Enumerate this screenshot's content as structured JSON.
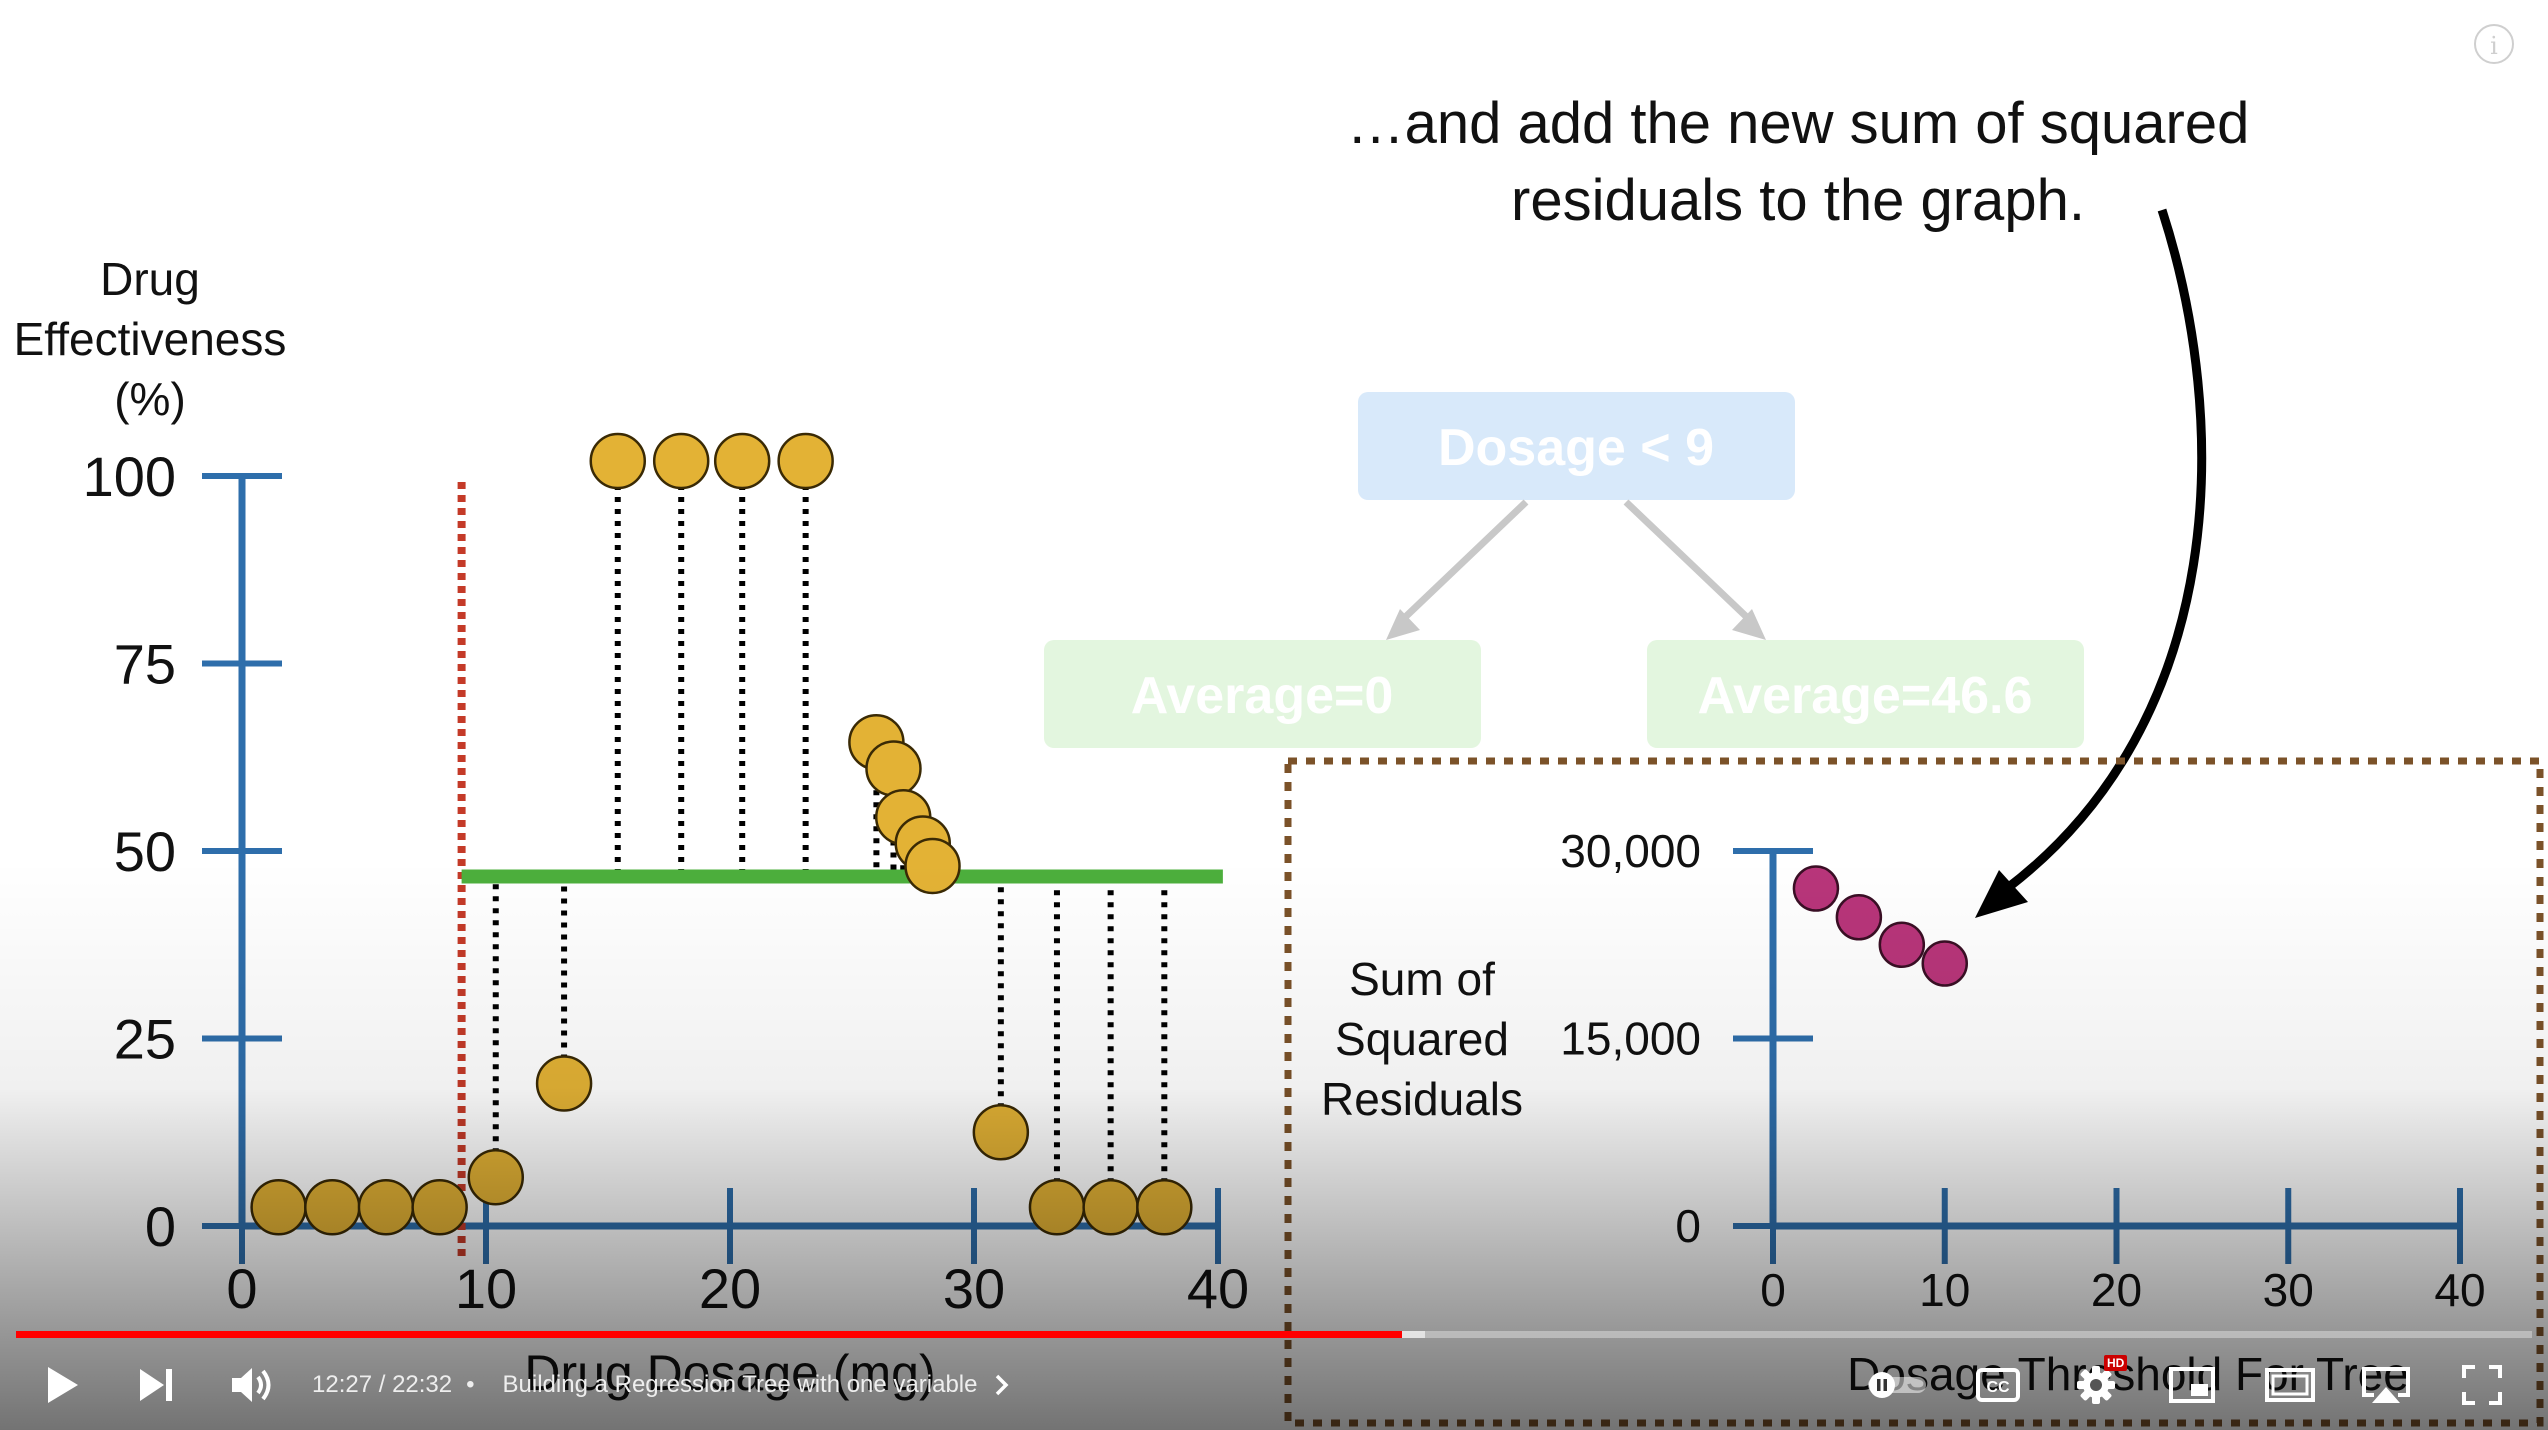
{
  "annotation": {
    "line1": "…and add the new sum of squared",
    "line2": "residuals to the graph."
  },
  "tree": {
    "root": "Dosage < 9",
    "left_leaf": "Average=0",
    "right_leaf": "Average=46.6"
  },
  "chart_data": [
    {
      "type": "scatter",
      "ylabel": [
        "Drug",
        "Effectiveness",
        "(%)"
      ],
      "xlabel": "Drug Dosage (mg)",
      "xlim": [
        0,
        40
      ],
      "ylim": [
        0,
        100
      ],
      "xticks": [
        "0",
        "10",
        "20",
        "30",
        "40"
      ],
      "yticks": [
        "0",
        "25",
        "50",
        "75",
        "100"
      ],
      "split_threshold": 9,
      "right_average": 46.6,
      "points": [
        {
          "x": 1.5,
          "y": 2.5
        },
        {
          "x": 3.7,
          "y": 2.5
        },
        {
          "x": 5.9,
          "y": 2.5
        },
        {
          "x": 8.1,
          "y": 2.5
        },
        {
          "x": 10.4,
          "y": 6.5
        },
        {
          "x": 13.2,
          "y": 19
        },
        {
          "x": 15.4,
          "y": 102
        },
        {
          "x": 18,
          "y": 102
        },
        {
          "x": 20.5,
          "y": 102
        },
        {
          "x": 23.1,
          "y": 102
        },
        {
          "x": 26,
          "y": 64.5
        },
        {
          "x": 26.7,
          "y": 61
        },
        {
          "x": 27.1,
          "y": 54.5
        },
        {
          "x": 27.9,
          "y": 51
        },
        {
          "x": 28.3,
          "y": 48
        },
        {
          "x": 31.1,
          "y": 12.5
        },
        {
          "x": 33.4,
          "y": 2.5
        },
        {
          "x": 35.6,
          "y": 2.5
        },
        {
          "x": 37.8,
          "y": 2.5
        }
      ],
      "dotted_residual_count": 13,
      "colors": {
        "axis": "#2e6eab",
        "points": "#e3b235",
        "split": "#c43a28",
        "average": "#4caf3c"
      }
    },
    {
      "type": "scatter",
      "ylabel": [
        "Sum of",
        "Squared",
        "Residuals"
      ],
      "xlabel": "Dosage Threshold For Tree",
      "xlim": [
        0,
        40
      ],
      "ylim": [
        0,
        30000
      ],
      "xticks": [
        "0",
        "10",
        "20",
        "30",
        "40"
      ],
      "yticks": [
        "0",
        "15,000",
        "30,000"
      ],
      "points": [
        {
          "x": 2.5,
          "y": 27000
        },
        {
          "x": 5,
          "y": 24700
        },
        {
          "x": 7.5,
          "y": 22500
        },
        {
          "x": 10,
          "y": 21000
        }
      ],
      "colors": {
        "axis": "#2e6eab",
        "points": "#b8357a",
        "frame": "#7b5229"
      }
    }
  ],
  "player": {
    "time": "12:27 / 22:32",
    "separator": "•",
    "chapter": "Building a Regression Tree with one variable",
    "progress_played": 0.551,
    "progress_buffered": 0.56,
    "hd_label": "HD",
    "info_label": "i",
    "icons": [
      "play-icon",
      "next-icon",
      "volume-icon",
      "chevron-right-icon",
      "autoplay-toggle-icon",
      "captions-icon",
      "settings-icon",
      "miniplayer-icon",
      "theater-icon",
      "airplay-icon",
      "fullscreen-icon"
    ]
  }
}
